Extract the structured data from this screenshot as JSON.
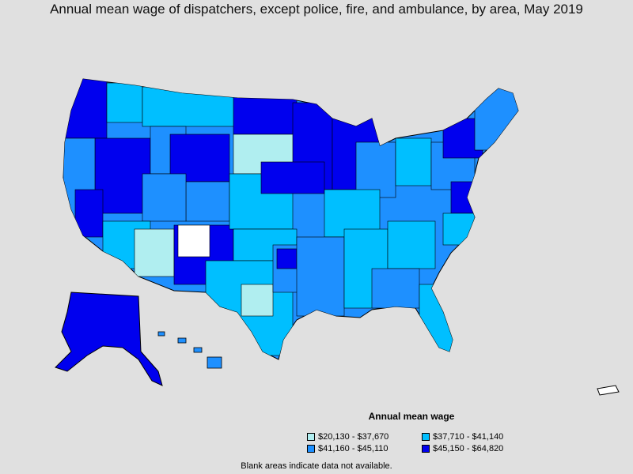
{
  "title": "Annual mean wage of dispatchers, except police, fire, and ambulance, by area, May 2019",
  "legend": {
    "title": "Annual mean wage",
    "items": [
      {
        "label": "$20,130 - $37,670",
        "color": "#b0eef0"
      },
      {
        "label": "$37,710 - $41,140",
        "color": "#00bfff"
      },
      {
        "label": "$41,160 - $45,110",
        "color": "#1e90ff"
      },
      {
        "label": "$45,150 - $64,820",
        "color": "#0000ee"
      }
    ]
  },
  "footnote": "Blank areas indicate data not available.",
  "colors": {
    "background": "#e0e0e0",
    "border": "#000000",
    "no_data": "#ffffff"
  }
}
